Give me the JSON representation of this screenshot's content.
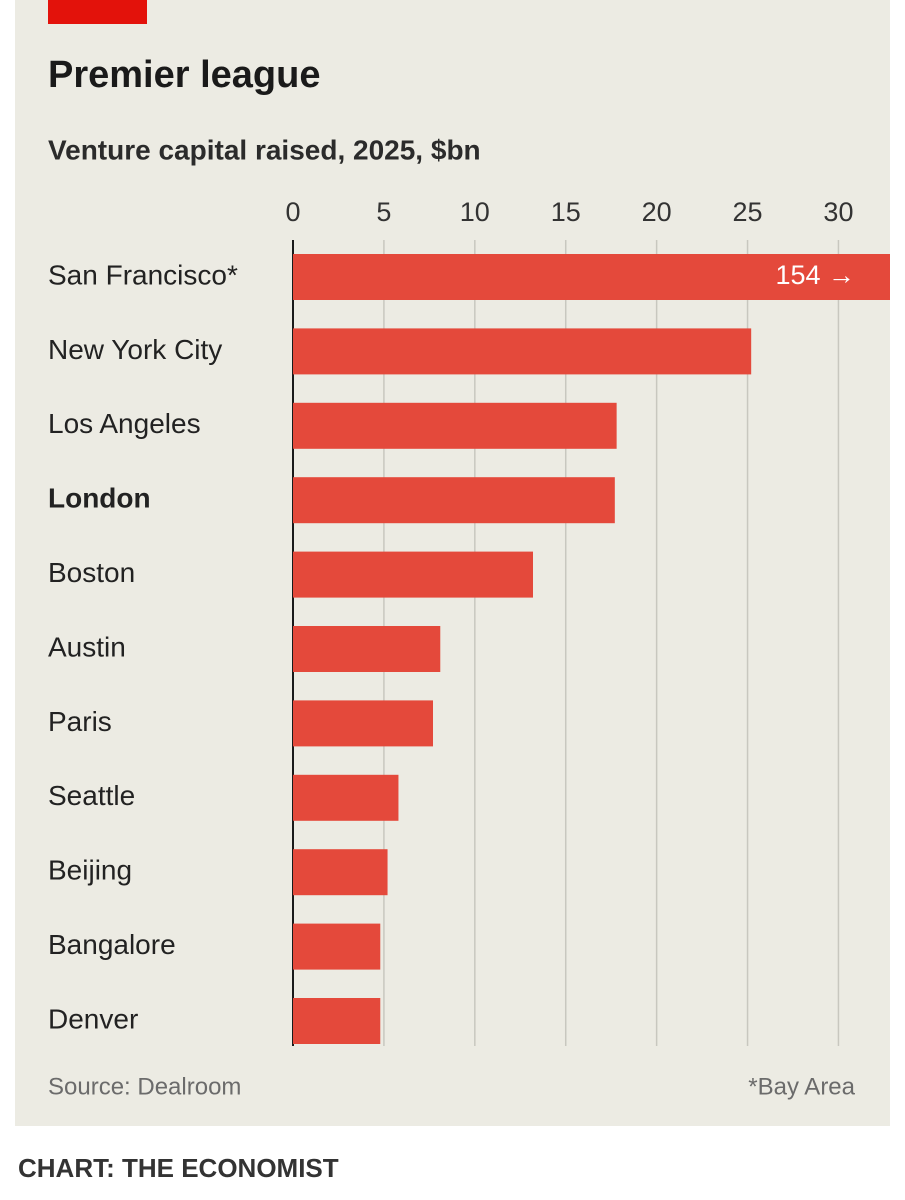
{
  "chart_data": {
    "type": "hbar",
    "title": "Premier league",
    "subtitle": "Venture capital raised, 2025, $bn",
    "categories": [
      "San Francisco*",
      "New York City",
      "Los Angeles",
      "London",
      "Boston",
      "Austin",
      "Paris",
      "Seattle",
      "Beijing",
      "Bangalore",
      "Denver"
    ],
    "values": [
      154,
      25.2,
      17.8,
      17.7,
      13.2,
      8.1,
      7.7,
      5.8,
      5.2,
      4.8,
      4.8
    ],
    "value_labels": [
      "154 →",
      null,
      null,
      null,
      null,
      null,
      null,
      null,
      null,
      null,
      null
    ],
    "highlight": "London",
    "color": "#e4493b",
    "xlim": [
      0,
      33
    ],
    "xticks": [
      0,
      5,
      10,
      15,
      20,
      25,
      30
    ],
    "grid": true,
    "source": "Source: Dealroom",
    "footnote": "*Bay Area",
    "credit": "CHART: THE ECONOMIST"
  }
}
